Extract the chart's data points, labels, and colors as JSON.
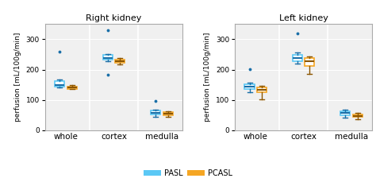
{
  "title_left": "Right kidney",
  "title_right": "Left kidney",
  "ylabel": "perfusion [mL/100g/min]",
  "categories": [
    "whole",
    "cortex",
    "medulla"
  ],
  "ylim": [
    0,
    350
  ],
  "yticks": [
    0,
    100,
    200,
    300
  ],
  "pasl_color": "#5BC8F5",
  "pcasl_color": "#F5A623",
  "pasl_dark": "#1A6FA8",
  "pcasl_dark": "#8B5500",
  "legend_pasl": "PASL",
  "legend_pcasl": "PCASL",
  "right_pasl": {
    "whole": {
      "med": 150,
      "q1": 143,
      "q3": 162,
      "whislo": 140,
      "whishi": 167,
      "fliers": [
        260
      ]
    },
    "cortex": {
      "med": 238,
      "q1": 232,
      "q3": 248,
      "whislo": 228,
      "whishi": 252,
      "fliers": [
        330,
        182
      ]
    },
    "medulla": {
      "med": 57,
      "q1": 51,
      "q3": 64,
      "whislo": 44,
      "whishi": 68,
      "fliers": [
        97
      ]
    }
  },
  "right_pcasl": {
    "whole": {
      "med": 141,
      "q1": 137,
      "q3": 145,
      "whislo": 135,
      "whishi": 148,
      "fliers": []
    },
    "cortex": {
      "med": 228,
      "q1": 222,
      "q3": 234,
      "whislo": 218,
      "whishi": 238,
      "fliers": []
    },
    "medulla": {
      "med": 55,
      "q1": 50,
      "q3": 60,
      "whislo": 44,
      "whishi": 63,
      "fliers": []
    }
  },
  "left_pasl": {
    "whole": {
      "med": 143,
      "q1": 136,
      "q3": 151,
      "whislo": 126,
      "whishi": 157,
      "fliers": [
        202
      ]
    },
    "cortex": {
      "med": 238,
      "q1": 228,
      "q3": 250,
      "whislo": 220,
      "whishi": 256,
      "fliers": [
        320
      ]
    },
    "medulla": {
      "med": 57,
      "q1": 50,
      "q3": 63,
      "whislo": 42,
      "whishi": 68,
      "fliers": []
    }
  },
  "left_pcasl": {
    "whole": {
      "med": 132,
      "q1": 126,
      "q3": 140,
      "whislo": 103,
      "whishi": 146,
      "fliers": []
    },
    "cortex": {
      "med": 228,
      "q1": 212,
      "q3": 238,
      "whislo": 185,
      "whishi": 244,
      "fliers": []
    },
    "medulla": {
      "med": 48,
      "q1": 43,
      "q3": 53,
      "whislo": 36,
      "whishi": 57,
      "fliers": []
    }
  },
  "bg_color": "#f0f0f0",
  "figsize": [
    4.74,
    2.34
  ],
  "dpi": 100
}
